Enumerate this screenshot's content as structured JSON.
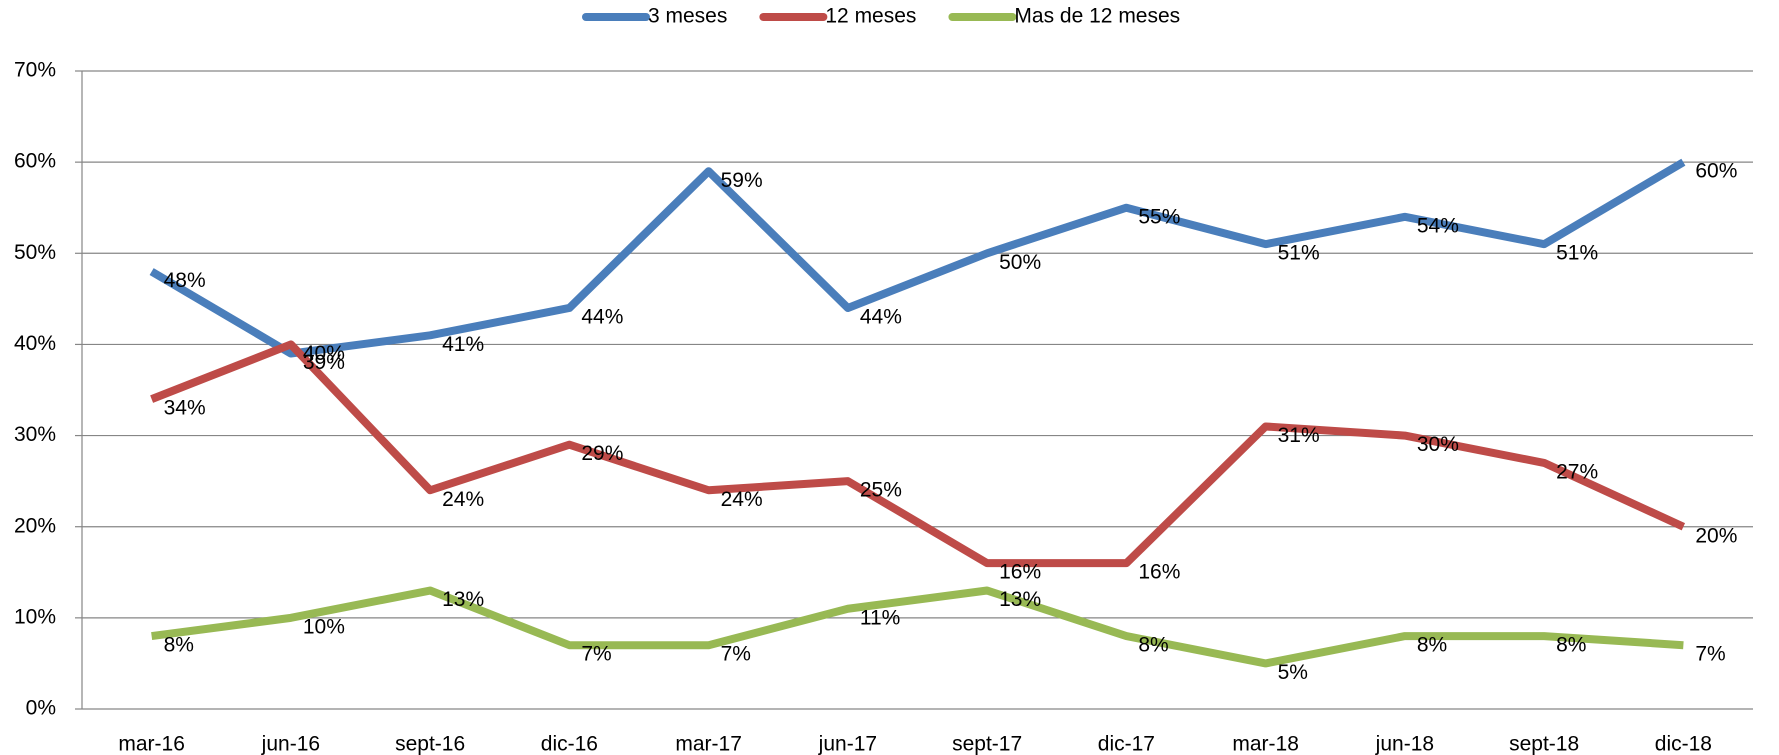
{
  "chart_data": {
    "type": "line",
    "categories": [
      "mar-16",
      "jun-16",
      "sept-16",
      "dic-16",
      "mar-17",
      "jun-17",
      "sept-17",
      "dic-17",
      "mar-18",
      "jun-18",
      "sept-18",
      "dic-18"
    ],
    "series": [
      {
        "name": "3 meses",
        "color": "#4a7ebb",
        "values": [
          48,
          39,
          41,
          44,
          59,
          44,
          50,
          55,
          51,
          54,
          51,
          60
        ],
        "value_labels": [
          "48%",
          "39%",
          "41%",
          "44%",
          "59%",
          "44%",
          "50%",
          "55%",
          "51%",
          "54%",
          "51%",
          "60%"
        ]
      },
      {
        "name": "12 meses",
        "color": "#be4b48",
        "values": [
          34,
          40,
          24,
          29,
          24,
          25,
          16,
          16,
          31,
          30,
          27,
          20
        ],
        "value_labels": [
          "34%",
          "40%",
          "24%",
          "29%",
          "24%",
          "25%",
          "16%",
          "16%",
          "31%",
          "30%",
          "27%",
          "20%"
        ]
      },
      {
        "name": "Mas de 12 meses",
        "color": "#98b954",
        "values": [
          8,
          10,
          13,
          7,
          7,
          11,
          13,
          8,
          5,
          8,
          8,
          7
        ],
        "value_labels": [
          "8%",
          "10%",
          "13%",
          "7%",
          "7%",
          "11%",
          "13%",
          "8%",
          "5%",
          "8%",
          "8%",
          "7%"
        ]
      }
    ],
    "ylim": [
      0,
      70
    ],
    "yticks": [
      {
        "value": 0,
        "label": "0%"
      },
      {
        "value": 10,
        "label": "10%"
      },
      {
        "value": 20,
        "label": "20%"
      },
      {
        "value": 30,
        "label": "30%"
      },
      {
        "value": 40,
        "label": "40%"
      },
      {
        "value": 50,
        "label": "50%"
      },
      {
        "value": 60,
        "label": "60%"
      },
      {
        "value": 70,
        "label": "70%"
      }
    ],
    "grid": true,
    "legend": "top"
  }
}
